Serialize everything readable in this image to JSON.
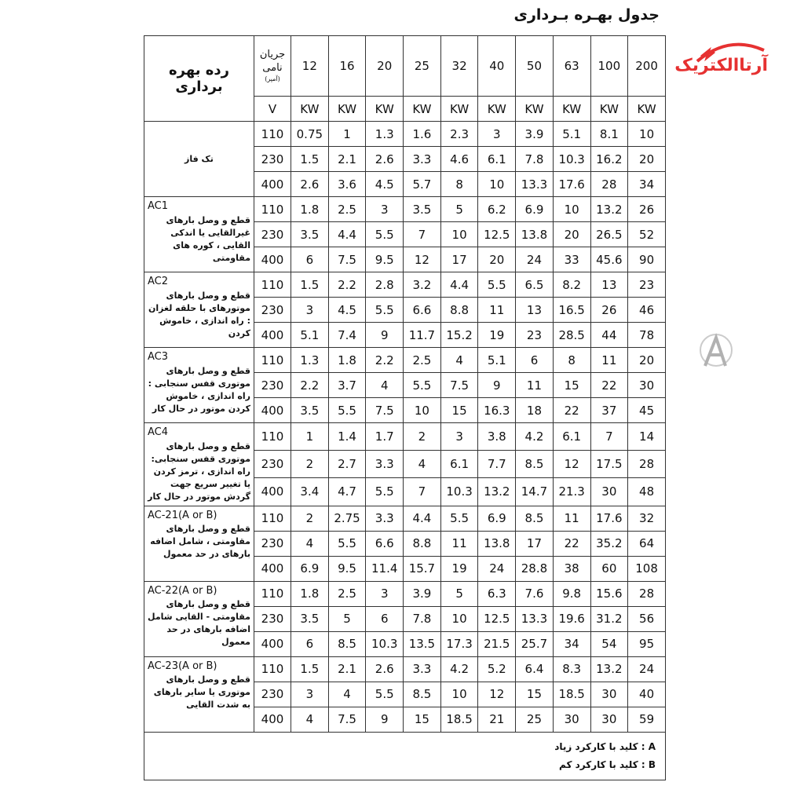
{
  "title": "جدول بهـره بـرداری",
  "logo": {
    "text": "آرتاالکتریک",
    "color": "#e63131"
  },
  "header": {
    "category_label": "رده بهره برداری",
    "current_label": "جریان نامی",
    "current_unit": "(آمپر)",
    "voltage_unit": "V",
    "power_unit": "KW",
    "amperes": [
      "12",
      "16",
      "20",
      "25",
      "32",
      "40",
      "50",
      "63",
      "100",
      "200"
    ]
  },
  "groups": [
    {
      "code": "",
      "desc": "تک فاز",
      "rows": [
        {
          "v": "110",
          "vals": [
            "0.75",
            "1",
            "1.3",
            "1.6",
            "2.3",
            "3",
            "3.9",
            "5.1",
            "8.1",
            "10"
          ]
        },
        {
          "v": "230",
          "vals": [
            "1.5",
            "2.1",
            "2.6",
            "3.3",
            "4.6",
            "6.1",
            "7.8",
            "10.3",
            "16.2",
            "20"
          ]
        },
        {
          "v": "400",
          "vals": [
            "2.6",
            "3.6",
            "4.5",
            "5.7",
            "8",
            "10",
            "13.3",
            "17.6",
            "28",
            "34"
          ]
        }
      ]
    },
    {
      "code": "AC1",
      "desc": "قطع و وصل بارهای غیرالقایی یا اندکی القایی ، کوره های مقاومتی",
      "rows": [
        {
          "v": "110",
          "vals": [
            "1.8",
            "2.5",
            "3",
            "3.5",
            "5",
            "6.2",
            "6.9",
            "10",
            "13.2",
            "26"
          ]
        },
        {
          "v": "230",
          "vals": [
            "3.5",
            "4.4",
            "5.5",
            "7",
            "10",
            "12.5",
            "13.8",
            "20",
            "26.5",
            "52"
          ]
        },
        {
          "v": "400",
          "vals": [
            "6",
            "7.5",
            "9.5",
            "12",
            "17",
            "20",
            "24",
            "33",
            "45.6",
            "90"
          ]
        }
      ]
    },
    {
      "code": "AC2",
      "desc": "قطع و وصل بارهای موتورهای با حلقه لغزان : راه اندازی ، خاموش کردن",
      "rows": [
        {
          "v": "110",
          "vals": [
            "1.5",
            "2.2",
            "2.8",
            "3.2",
            "4.4",
            "5.5",
            "6.5",
            "8.2",
            "13",
            "23"
          ]
        },
        {
          "v": "230",
          "vals": [
            "3",
            "4.5",
            "5.5",
            "6.6",
            "8.8",
            "11",
            "13",
            "16.5",
            "26",
            "46"
          ]
        },
        {
          "v": "400",
          "vals": [
            "5.1",
            "7.4",
            "9",
            "11.7",
            "15.2",
            "19",
            "23",
            "28.5",
            "44",
            "78"
          ]
        }
      ]
    },
    {
      "code": "AC3",
      "desc": "قطع و وصل بارهای موتوری قفس سنجابی : راه اندازی ، خاموش کردن موتور در حال کار",
      "rows": [
        {
          "v": "110",
          "vals": [
            "1.3",
            "1.8",
            "2.2",
            "2.5",
            "4",
            "5.1",
            "6",
            "8",
            "11",
            "20"
          ]
        },
        {
          "v": "230",
          "vals": [
            "2.2",
            "3.7",
            "4",
            "5.5",
            "7.5",
            "9",
            "11",
            "15",
            "22",
            "30"
          ]
        },
        {
          "v": "400",
          "vals": [
            "3.5",
            "5.5",
            "7.5",
            "10",
            "15",
            "16.3",
            "18",
            "22",
            "37",
            "45"
          ]
        }
      ]
    },
    {
      "code": "AC4",
      "desc": "قطع و وصل بارهای موتوری قفس سنجابی: راه اندازی ، ترمز کردن یا تغییر سریع جهت گردش موتور در حال کار",
      "rows": [
        {
          "v": "110",
          "vals": [
            "1",
            "1.4",
            "1.7",
            "2",
            "3",
            "3.8",
            "4.2",
            "6.1",
            "7",
            "14"
          ]
        },
        {
          "v": "230",
          "vals": [
            "2",
            "2.7",
            "3.3",
            "4",
            "6.1",
            "7.7",
            "8.5",
            "12",
            "17.5",
            "28"
          ]
        },
        {
          "v": "400",
          "vals": [
            "3.4",
            "4.7",
            "5.5",
            "7",
            "10.3",
            "13.2",
            "14.7",
            "21.3",
            "30",
            "48"
          ]
        }
      ]
    },
    {
      "code": "AC-21(A or B)",
      "desc": "قطع و وصل بارهای مقاومتی ، شامل اضافه بارهای در حد معمول",
      "rows": [
        {
          "v": "110",
          "vals": [
            "2",
            "2.75",
            "3.3",
            "4.4",
            "5.5",
            "6.9",
            "8.5",
            "11",
            "17.6",
            "32"
          ]
        },
        {
          "v": "230",
          "vals": [
            "4",
            "5.5",
            "6.6",
            "8.8",
            "11",
            "13.8",
            "17",
            "22",
            "35.2",
            "64"
          ]
        },
        {
          "v": "400",
          "vals": [
            "6.9",
            "9.5",
            "11.4",
            "15.7",
            "19",
            "24",
            "28.8",
            "38",
            "60",
            "108"
          ]
        }
      ]
    },
    {
      "code": "AC-22(A or B)",
      "desc": "قطع و وصل بارهای مقاومتی - القایی شامل اضافه بارهای در حد معمول",
      "rows": [
        {
          "v": "110",
          "vals": [
            "1.8",
            "2.5",
            "3",
            "3.9",
            "5",
            "6.3",
            "7.6",
            "9.8",
            "15.6",
            "28"
          ]
        },
        {
          "v": "230",
          "vals": [
            "3.5",
            "5",
            "6",
            "7.8",
            "10",
            "12.5",
            "13.3",
            "19.6",
            "31.2",
            "56"
          ]
        },
        {
          "v": "400",
          "vals": [
            "6",
            "8.5",
            "10.3",
            "13.5",
            "17.3",
            "21.5",
            "25.7",
            "34",
            "54",
            "95"
          ]
        }
      ]
    },
    {
      "code": "AC-23(A or B)",
      "desc": "قطع و وصل بارهای موتوری یا سایر بارهای به شدت القایی",
      "rows": [
        {
          "v": "110",
          "vals": [
            "1.5",
            "2.1",
            "2.6",
            "3.3",
            "4.2",
            "5.2",
            "6.4",
            "8.3",
            "13.2",
            "24"
          ]
        },
        {
          "v": "230",
          "vals": [
            "3",
            "4",
            "5.5",
            "8.5",
            "10",
            "12",
            "15",
            "18.5",
            "30",
            "40"
          ]
        },
        {
          "v": "400",
          "vals": [
            "4",
            "7.5",
            "9",
            "15",
            "18.5",
            "21",
            "25",
            "30",
            "30",
            "59"
          ]
        }
      ]
    }
  ],
  "footnotes": [
    "A : کلید با کارکرد زیاد",
    "B : کلید با کارکرد کم"
  ]
}
